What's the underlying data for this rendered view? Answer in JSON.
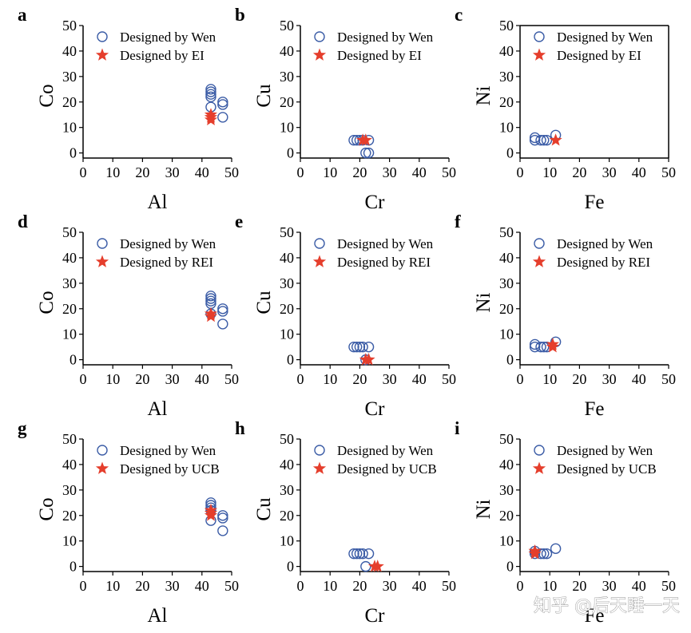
{
  "chart_data": [
    {
      "type": "scatter",
      "panel": "a",
      "xlabel": "Al",
      "ylabel": "Co",
      "xlim": [
        0,
        50
      ],
      "ylim": [
        -2,
        50
      ],
      "xticks": [
        0,
        10,
        20,
        30,
        40,
        50
      ],
      "yticks": [
        0,
        10,
        20,
        30,
        40,
        50
      ],
      "frame": false,
      "series": [
        {
          "name": "Designed by Wen",
          "color": "#3b5ca6",
          "marker": "circle",
          "x": [
            43,
            43,
            43,
            43,
            43,
            47,
            47,
            47
          ],
          "values": [
            25,
            24,
            23,
            22,
            18,
            20,
            19,
            14
          ]
        },
        {
          "name": "Designed by EI",
          "color": "#e53e2c",
          "marker": "star",
          "x": [
            43,
            43,
            43
          ],
          "values": [
            15,
            14,
            13
          ]
        }
      ]
    },
    {
      "type": "scatter",
      "panel": "b",
      "xlabel": "Cr",
      "ylabel": "Cu",
      "xlim": [
        0,
        50
      ],
      "ylim": [
        -2,
        50
      ],
      "xticks": [
        0,
        10,
        20,
        30,
        40,
        50
      ],
      "yticks": [
        0,
        10,
        20,
        30,
        40,
        50
      ],
      "frame": false,
      "series": [
        {
          "name": "Designed by Wen",
          "color": "#3b5ca6",
          "marker": "circle",
          "x": [
            18,
            19,
            20,
            21,
            23,
            22,
            23
          ],
          "values": [
            5,
            5,
            5,
            5,
            5,
            0,
            0
          ]
        },
        {
          "name": "Designed by EI",
          "color": "#e53e2c",
          "marker": "star",
          "x": [
            21,
            22
          ],
          "values": [
            5,
            5
          ]
        }
      ]
    },
    {
      "type": "scatter",
      "panel": "c",
      "xlabel": "Fe",
      "ylabel": "Ni",
      "xlim": [
        0,
        50
      ],
      "ylim": [
        -2,
        50
      ],
      "xticks": [
        0,
        10,
        20,
        30,
        40,
        50
      ],
      "yticks": [
        0,
        10,
        20,
        30,
        40,
        50
      ],
      "frame": true,
      "series": [
        {
          "name": "Designed by Wen",
          "color": "#3b5ca6",
          "marker": "circle",
          "x": [
            5,
            5,
            7,
            8,
            9,
            12
          ],
          "values": [
            6,
            5,
            5,
            5,
            5,
            7
          ]
        },
        {
          "name": "Designed by EI",
          "color": "#e53e2c",
          "marker": "star",
          "x": [
            12
          ],
          "values": [
            5
          ]
        }
      ]
    },
    {
      "type": "scatter",
      "panel": "d",
      "xlabel": "Al",
      "ylabel": "Co",
      "xlim": [
        0,
        50
      ],
      "ylim": [
        -2,
        50
      ],
      "xticks": [
        0,
        10,
        20,
        30,
        40,
        50
      ],
      "yticks": [
        0,
        10,
        20,
        30,
        40,
        50
      ],
      "frame": false,
      "series": [
        {
          "name": "Designed by Wen",
          "color": "#3b5ca6",
          "marker": "circle",
          "x": [
            43,
            43,
            43,
            43,
            43,
            47,
            47,
            47
          ],
          "values": [
            25,
            24,
            23,
            22,
            18,
            20,
            19,
            14
          ]
        },
        {
          "name": "Designed by REI",
          "color": "#e53e2c",
          "marker": "star",
          "x": [
            43,
            43
          ],
          "values": [
            18,
            17
          ]
        }
      ]
    },
    {
      "type": "scatter",
      "panel": "e",
      "xlabel": "Cr",
      "ylabel": "Cu",
      "xlim": [
        0,
        50
      ],
      "ylim": [
        -2,
        50
      ],
      "xticks": [
        0,
        10,
        20,
        30,
        40,
        50
      ],
      "yticks": [
        0,
        10,
        20,
        30,
        40,
        50
      ],
      "frame": false,
      "series": [
        {
          "name": "Designed by Wen",
          "color": "#3b5ca6",
          "marker": "circle",
          "x": [
            18,
            19,
            20,
            21,
            23,
            22
          ],
          "values": [
            5,
            5,
            5,
            5,
            5,
            0
          ]
        },
        {
          "name": "Designed by REI",
          "color": "#e53e2c",
          "marker": "star",
          "x": [
            22,
            23
          ],
          "values": [
            0,
            0
          ]
        }
      ]
    },
    {
      "type": "scatter",
      "panel": "f",
      "xlabel": "Fe",
      "ylabel": "Ni",
      "xlim": [
        0,
        50
      ],
      "ylim": [
        -2,
        50
      ],
      "xticks": [
        0,
        10,
        20,
        30,
        40,
        50
      ],
      "yticks": [
        0,
        10,
        20,
        30,
        40,
        50
      ],
      "frame": false,
      "series": [
        {
          "name": "Designed by Wen",
          "color": "#3b5ca6",
          "marker": "circle",
          "x": [
            5,
            5,
            7,
            8,
            9,
            12
          ],
          "values": [
            6,
            5,
            5,
            5,
            5,
            7
          ]
        },
        {
          "name": "Designed by REI",
          "color": "#e53e2c",
          "marker": "star",
          "x": [
            11,
            11
          ],
          "values": [
            6,
            5
          ]
        }
      ]
    },
    {
      "type": "scatter",
      "panel": "g",
      "xlabel": "Al",
      "ylabel": "Co",
      "xlim": [
        0,
        50
      ],
      "ylim": [
        -2,
        50
      ],
      "xticks": [
        0,
        10,
        20,
        30,
        40,
        50
      ],
      "yticks": [
        0,
        10,
        20,
        30,
        40,
        50
      ],
      "frame": false,
      "series": [
        {
          "name": "Designed by Wen",
          "color": "#3b5ca6",
          "marker": "circle",
          "x": [
            43,
            43,
            43,
            43,
            43,
            47,
            47,
            47
          ],
          "values": [
            25,
            24,
            23,
            22,
            18,
            20,
            19,
            14
          ]
        },
        {
          "name": "Designed by UCB",
          "color": "#e53e2c",
          "marker": "star",
          "x": [
            43,
            43,
            43
          ],
          "values": [
            22,
            21,
            20
          ]
        }
      ]
    },
    {
      "type": "scatter",
      "panel": "h",
      "xlabel": "Cr",
      "ylabel": "Cu",
      "xlim": [
        0,
        50
      ],
      "ylim": [
        -2,
        50
      ],
      "xticks": [
        0,
        10,
        20,
        30,
        40,
        50
      ],
      "yticks": [
        0,
        10,
        20,
        30,
        40,
        50
      ],
      "frame": false,
      "series": [
        {
          "name": "Designed by Wen",
          "color": "#3b5ca6",
          "marker": "circle",
          "x": [
            18,
            19,
            20,
            21,
            23,
            22
          ],
          "values": [
            5,
            5,
            5,
            5,
            5,
            0
          ]
        },
        {
          "name": "Designed by UCB",
          "color": "#e53e2c",
          "marker": "star",
          "x": [
            25,
            26
          ],
          "values": [
            0,
            0
          ]
        }
      ]
    },
    {
      "type": "scatter",
      "panel": "i",
      "xlabel": "Fe",
      "ylabel": "Ni",
      "xlim": [
        0,
        50
      ],
      "ylim": [
        -2,
        50
      ],
      "xticks": [
        0,
        10,
        20,
        30,
        40,
        50
      ],
      "yticks": [
        0,
        10,
        20,
        30,
        40,
        50
      ],
      "frame": false,
      "series": [
        {
          "name": "Designed by Wen",
          "color": "#3b5ca6",
          "marker": "circle",
          "x": [
            5,
            5,
            7,
            8,
            9,
            12
          ],
          "values": [
            6,
            5,
            5,
            5,
            5,
            7
          ]
        },
        {
          "name": "Designed by UCB",
          "color": "#e53e2c",
          "marker": "star",
          "x": [
            5,
            5
          ],
          "values": [
            6,
            5
          ]
        }
      ]
    }
  ],
  "watermark": "知乎 @后天睡一天"
}
